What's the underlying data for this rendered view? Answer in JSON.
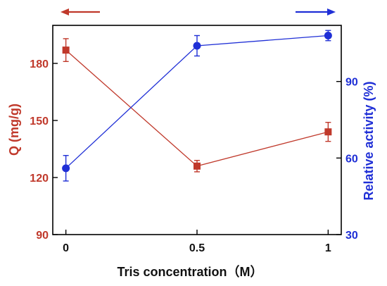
{
  "chart_data": {
    "type": "line",
    "xlabel": "Tris concentration（M）",
    "categories": [
      "0",
      "0.5",
      "1"
    ],
    "x": [
      0,
      0.5,
      1
    ],
    "xlim": [
      -0.05,
      1.05
    ],
    "grid": false,
    "left_axis": {
      "label": "Q (mg/g)",
      "ylim": [
        90,
        200
      ],
      "ticks": [
        90,
        120,
        150,
        180
      ],
      "color": "#c0392b"
    },
    "right_axis": {
      "label": "Relative activity (%)",
      "ylim": [
        30,
        112
      ],
      "ticks": [
        30,
        60,
        90
      ],
      "color": "#1f2fd6"
    },
    "series": [
      {
        "axis": "left",
        "marker": "square",
        "color": "#c0392b",
        "values": [
          187,
          126,
          144
        ],
        "errors": [
          6,
          3,
          5
        ]
      },
      {
        "axis": "right",
        "marker": "circle",
        "color": "#1f2fd6",
        "values": [
          56,
          104,
          108
        ],
        "errors": [
          5,
          4,
          2
        ]
      }
    ],
    "arrows": [
      {
        "direction": "left",
        "axis": "left",
        "color": "#c0392b"
      },
      {
        "direction": "right",
        "axis": "right",
        "color": "#1f2fd6"
      }
    ]
  }
}
